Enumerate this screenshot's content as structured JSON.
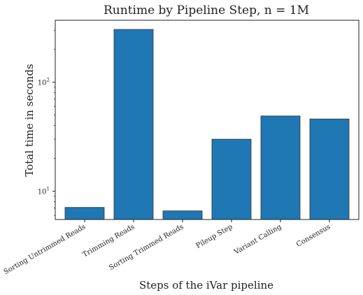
{
  "chart_data": {
    "type": "bar",
    "title": "Runtime by Pipeline Step, n = 1M",
    "xlabel": "Steps of the iVar pipeline",
    "ylabel": "Total time in seconds",
    "yscale": "log",
    "ylim": [
      5.5,
      370
    ],
    "yticks": [
      {
        "value": 10,
        "base": "10",
        "exp": "1"
      },
      {
        "value": 100,
        "base": "10",
        "exp": "2"
      }
    ],
    "categories": [
      "Sorting Untrimmed Reads",
      "Trimming Reads",
      "Sorting Trimmed Reads",
      "Pileup Step",
      "Variant Calling",
      "Consensus"
    ],
    "values": [
      7.1,
      305,
      6.6,
      30,
      49,
      46
    ],
    "bar_color": "#1f77b4",
    "bar_edge_color": "#333333",
    "grid": false,
    "legend": "none"
  }
}
